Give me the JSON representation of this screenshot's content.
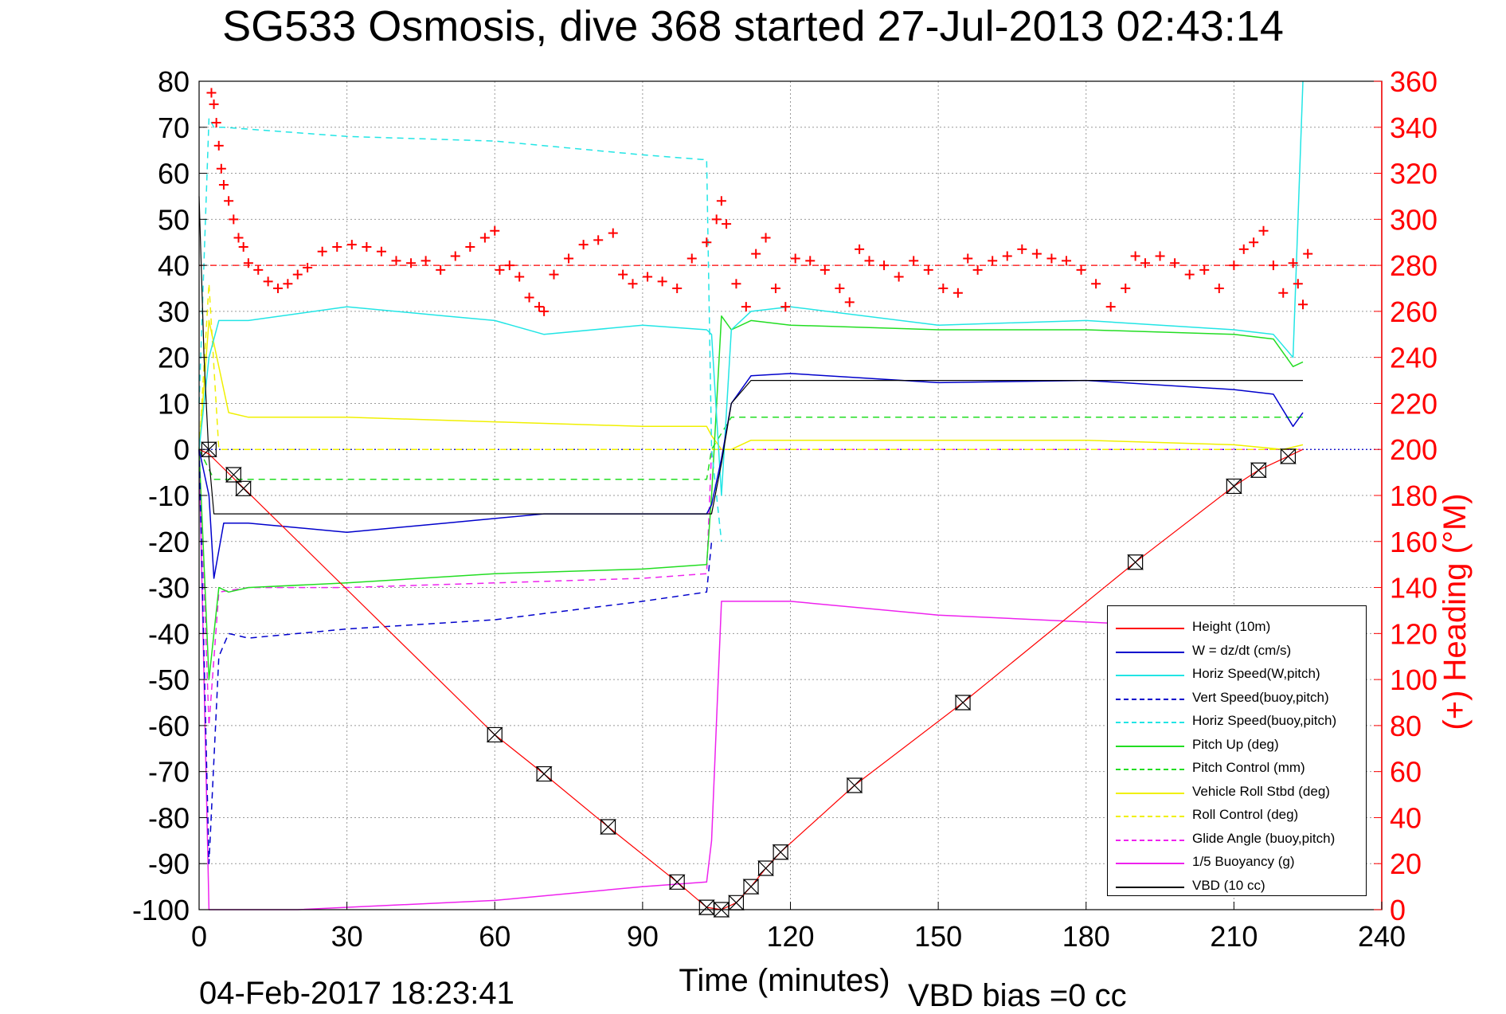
{
  "title": "SG533 Osmosis, dive 368 started 27-Jul-2013 02:43:14",
  "timestamp": "04-Feb-2017 18:23:41",
  "vbd_bias": "VBD bias =0 cc",
  "chart_data": {
    "type": "line",
    "title": "SG533 Osmosis, dive 368 started 27-Jul-2013 02:43:14",
    "xlabel": "Time (minutes)",
    "ylabel": "",
    "y2label": "(+) Heading (°M)",
    "xlim": [
      0,
      240
    ],
    "ylim": [
      -100,
      80
    ],
    "y2lim": [
      0,
      360
    ],
    "xticks": [
      "0",
      "30",
      "60",
      "90",
      "120",
      "150",
      "180",
      "210",
      "240"
    ],
    "yticks": [
      "80",
      "70",
      "60",
      "50",
      "40",
      "30",
      "20",
      "10",
      "0",
      "-10",
      "-20",
      "-30",
      "-40",
      "-50",
      "-60",
      "-70",
      "-80",
      "-90",
      "-100"
    ],
    "y2ticks": [
      "360",
      "340",
      "320",
      "300",
      "280",
      "260",
      "240",
      "220",
      "200",
      "180",
      "160",
      "140",
      "120",
      "100",
      "80",
      "60",
      "40",
      "20",
      "0"
    ],
    "grid": true,
    "legend_position": "bottom-right",
    "colors": {
      "height": "#ff0000",
      "w": "#0000cc",
      "hspeed": "#22e5e5",
      "green": "#22dd22",
      "yellow": "#f0f000",
      "magenta": "#ee22ee",
      "vbd": "#000000",
      "heading": "#ff0000",
      "ref": "#ff0000"
    },
    "legend": [
      {
        "label": "Height (10m)",
        "color": "#ff0000",
        "style": "solid"
      },
      {
        "label": "W = dz/dt (cm/s)",
        "color": "#0000cc",
        "style": "solid"
      },
      {
        "label": "Horiz Speed(W,pitch)",
        "color": "#22e5e5",
        "style": "solid"
      },
      {
        "label": "Vert Speed(buoy,pitch)",
        "color": "#0000cc",
        "style": "dashed"
      },
      {
        "label": "Horiz Speed(buoy,pitch)",
        "color": "#22e5e5",
        "style": "dashed"
      },
      {
        "label": "Pitch Up (deg)",
        "color": "#22dd22",
        "style": "solid"
      },
      {
        "label": "Pitch Control (mm)",
        "color": "#22dd22",
        "style": "dashed"
      },
      {
        "label": "Vehicle Roll Stbd (deg)",
        "color": "#f0f000",
        "style": "solid"
      },
      {
        "label": "Roll Control (deg)",
        "color": "#f0f000",
        "style": "dashed"
      },
      {
        "label": "Glide Angle (buoy,pitch)",
        "color": "#ee22ee",
        "style": "dashed"
      },
      {
        "label": "1/5 Buoyancy (g)",
        "color": "#ee22ee",
        "style": "solid"
      },
      {
        "label": "VBD (10 cc)",
        "color": "#000000",
        "style": "solid"
      }
    ],
    "series": [
      {
        "key": "height",
        "x": [
          0,
          2,
          60,
          70,
          83,
          97,
          103,
          106,
          109,
          112,
          115,
          118,
          133,
          155,
          190,
          210,
          215,
          221,
          224
        ],
        "y": [
          0,
          -1,
          -62,
          -70.5,
          -82,
          -94,
          -99.5,
          -100,
          -98.5,
          -95,
          -91,
          -87.5,
          -73,
          -55,
          -24.5,
          -8,
          -4.5,
          -1.5,
          0
        ]
      },
      {
        "key": "height_markers",
        "x": [
          2,
          7,
          9,
          60,
          70,
          83,
          97,
          103,
          106,
          109,
          112,
          115,
          118,
          133,
          155,
          190,
          210,
          215,
          221
        ],
        "y": [
          0,
          -5.5,
          -8.5,
          -62,
          -70.5,
          -82,
          -94,
          -99.5,
          -100,
          -98.5,
          -95,
          -91,
          -87.5,
          -73,
          -55,
          -24.5,
          -8,
          -4.5,
          -1.5
        ]
      },
      {
        "key": "w",
        "x": [
          0,
          2,
          3,
          5,
          10,
          30,
          50,
          70,
          90,
          103,
          104,
          106,
          108,
          112,
          120,
          150,
          180,
          210,
          218,
          222,
          224
        ],
        "y": [
          0,
          -10,
          -28,
          -16,
          -16,
          -18,
          -16,
          -14,
          -14,
          -14,
          -12,
          -2,
          10,
          16,
          16.5,
          14.5,
          15,
          13,
          12,
          5,
          8
        ]
      },
      {
        "key": "vert_speed_buoy",
        "x": [
          0,
          2,
          4,
          6,
          10,
          30,
          60,
          90,
          103,
          104
        ],
        "y": [
          0,
          -90,
          -45,
          -40,
          -41,
          -39,
          -37,
          -33,
          -31,
          -20
        ]
      },
      {
        "key": "hspeed",
        "x": [
          0,
          2,
          4,
          10,
          30,
          50,
          60,
          70,
          90,
          103,
          104,
          106,
          108,
          112,
          120,
          150,
          180,
          210,
          218,
          222,
          224
        ],
        "y": [
          0,
          20,
          28,
          28,
          31,
          29,
          28,
          25,
          27,
          26,
          25,
          -10,
          26,
          30,
          31,
          27,
          28,
          26,
          25,
          20,
          80
        ]
      },
      {
        "key": "hspeed_buoy",
        "x": [
          0,
          2,
          3,
          5,
          30,
          60,
          90,
          102,
          103,
          104,
          106
        ],
        "y": [
          10,
          72,
          70,
          70,
          68,
          67,
          64,
          63,
          63,
          0,
          -20
        ]
      },
      {
        "key": "pitch_up",
        "x": [
          0,
          2,
          4,
          6,
          10,
          30,
          60,
          90,
          103,
          104,
          106,
          108,
          112,
          120,
          150,
          180,
          210,
          218,
          222,
          224
        ],
        "y": [
          0,
          -50,
          -30,
          -31,
          -30,
          -29,
          -27,
          -26,
          -25,
          -10,
          29,
          26,
          28,
          27,
          26,
          26,
          25,
          24,
          18,
          19
        ]
      },
      {
        "key": "pitch_ctrl",
        "x": [
          0,
          3,
          103,
          104,
          108,
          224
        ],
        "y": [
          0,
          -6.5,
          -6.5,
          0,
          7,
          7
        ]
      },
      {
        "key": "roll",
        "x": [
          0,
          2,
          6,
          10,
          30,
          60,
          90,
          103,
          104,
          106,
          108,
          112,
          120,
          150,
          180,
          210,
          220,
          224
        ],
        "y": [
          0,
          28,
          8,
          7,
          7,
          6,
          5,
          5,
          3,
          0,
          0,
          2,
          2,
          2,
          2,
          1,
          0,
          1
        ]
      },
      {
        "key": "roll_ctrl",
        "x": [
          0,
          2,
          4,
          224
        ],
        "y": [
          0,
          36,
          0,
          0
        ]
      },
      {
        "key": "glide",
        "x": [
          0,
          2,
          4,
          10,
          30,
          60,
          90,
          103,
          104,
          106,
          224
        ],
        "y": [
          0,
          -60,
          -31,
          -30,
          -30,
          -29,
          -28,
          -27,
          0,
          0,
          0
        ]
      },
      {
        "key": "buoyancy",
        "x": [
          0,
          2,
          20,
          60,
          90,
          103,
          104,
          106,
          120,
          150,
          190,
          224
        ],
        "y": [
          0,
          -100,
          -100,
          -98,
          -95,
          -94,
          -85,
          -33,
          -33,
          -36,
          -38,
          -38
        ]
      },
      {
        "key": "vbd",
        "x": [
          0,
          1,
          2,
          3,
          103,
          104,
          106,
          108,
          112,
          222,
          224
        ],
        "y": [
          55,
          20,
          -2,
          -14,
          -14,
          -14,
          -3,
          10,
          15,
          15,
          15
        ]
      },
      {
        "key": "heading",
        "x": [
          2.5,
          3,
          3.5,
          4,
          4.5,
          5,
          6,
          7,
          8,
          9,
          10,
          12,
          14,
          16,
          18,
          20,
          22,
          25,
          28,
          31,
          34,
          37,
          40,
          43,
          46,
          49,
          52,
          55,
          58,
          60,
          61,
          63,
          65,
          67,
          69,
          70,
          72,
          75,
          78,
          81,
          84,
          86,
          88,
          91,
          94,
          97,
          100,
          103,
          105,
          106,
          107,
          109,
          111,
          113,
          115,
          117,
          119,
          121,
          124,
          127,
          130,
          132,
          134,
          136,
          139,
          142,
          145,
          148,
          151,
          154,
          156,
          158,
          161,
          164,
          167,
          170,
          173,
          176,
          179,
          182,
          185,
          188,
          190,
          192,
          195,
          198,
          201,
          204,
          207,
          210,
          212,
          214,
          216,
          218,
          220,
          222,
          223,
          224,
          225
        ],
        "y": [
          355,
          350,
          342,
          332,
          322,
          315,
          308,
          300,
          292,
          288,
          281,
          278,
          273,
          270,
          272,
          276,
          279,
          286,
          288,
          289,
          288,
          286,
          282,
          281,
          282,
          278,
          284,
          288,
          292,
          295,
          278,
          280,
          275,
          266,
          262,
          260,
          276,
          283,
          289,
          291,
          294,
          276,
          272,
          275,
          273,
          270,
          283,
          290,
          300,
          308,
          298,
          272,
          262,
          285,
          292,
          270,
          262,
          283,
          282,
          278,
          270,
          264,
          287,
          282,
          280,
          275,
          282,
          278,
          270,
          268,
          283,
          278,
          282,
          284,
          287,
          285,
          283,
          282,
          278,
          272,
          262,
          270,
          284,
          281,
          284,
          281,
          276,
          278,
          270,
          280,
          287,
          290,
          295,
          280,
          268,
          281,
          272,
          263,
          285
        ]
      }
    ],
    "reference_lines": [
      {
        "key": "heading_ref",
        "axis": "y2",
        "value": 280,
        "style": "dashed"
      },
      {
        "key": "zero_line",
        "axis": "y",
        "value": 0,
        "style": "dotted"
      }
    ]
  }
}
